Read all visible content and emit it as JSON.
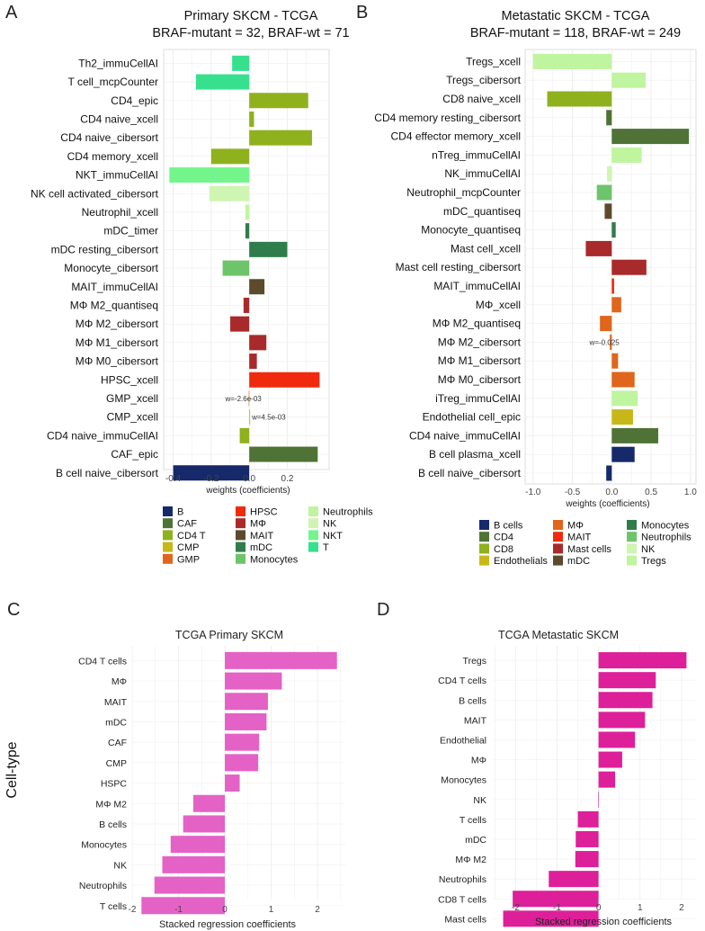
{
  "chart_data": [
    {
      "panel": "A",
      "type": "bar",
      "orientation": "horizontal",
      "title": "Primary SKCM - TCGA",
      "subtitle": "BRAF-mutant = 32, BRAF-wt = 71",
      "xlabel": "weights (coefficients)",
      "xlim": [
        -0.45,
        0.42
      ],
      "xticks": [
        -0.4,
        -0.2,
        0.0,
        0.2
      ],
      "xtick_labels": [
        "-0.4",
        "-0.2",
        "0.0",
        "0.2"
      ],
      "categories": [
        "Th2_immuCellAI",
        "T cell_mcpCounter",
        "CD4_epic",
        "CD4 naive_xcell",
        "CD4 naive_cibersort",
        "CD4 memory_xcell",
        "NKT_immuCellAI",
        "NK cell activated_cibersort",
        "Neutrophil_xcell",
        "mDC_timer",
        "mDC resting_cibersort",
        "Monocyte_cibersort",
        "MAIT_immuCellAI",
        "MΦ M2_quantiseq",
        "MΦ M2_cibersort",
        "MΦ M1_cibersort",
        "MΦ M0_cibersort",
        "HPSC_xcell",
        "GMP_xcell",
        "CMP_xcell",
        "CD4 naive_immuCellAI",
        "CAF_epic",
        "B cell naive_cibersort"
      ],
      "values": [
        -0.09,
        -0.28,
        0.31,
        0.025,
        0.33,
        -0.2,
        -0.42,
        -0.21,
        -0.02,
        -0.02,
        0.2,
        -0.14,
        0.08,
        -0.03,
        -0.1,
        0.09,
        0.04,
        0.37,
        -0.0026,
        0.0045,
        -0.05,
        0.36,
        -0.4
      ],
      "groups": [
        "T",
        "T",
        "CD4 T",
        "CD4 T",
        "CD4 T",
        "CD4 T",
        "NKT",
        "NK",
        "Neutrophils",
        "mDC",
        "mDC",
        "Monocytes",
        "MAIT",
        "MΦ",
        "MΦ",
        "MΦ",
        "MΦ",
        "HPSC",
        "GMP",
        "CMP",
        "CD4 T",
        "CAF",
        "B"
      ],
      "annotations": [
        {
          "category": "GMP_xcell",
          "text": "w=-2.6e-03"
        },
        {
          "category": "CMP_xcell",
          "text": "w=4.5e-03"
        }
      ],
      "legend_title": "",
      "legend": [
        {
          "label": "B",
          "color": "#15296b"
        },
        {
          "label": "CAF",
          "color": "#4f7336"
        },
        {
          "label": "CD4 T",
          "color": "#8fb11e"
        },
        {
          "label": "CMP",
          "color": "#c8b718"
        },
        {
          "label": "GMP",
          "color": "#e0661b"
        },
        {
          "label": "HPSC",
          "color": "#f02a0c"
        },
        {
          "label": "MΦ",
          "color": "#a92a2a"
        },
        {
          "label": "MAIT",
          "color": "#5c4a2c"
        },
        {
          "label": "mDC",
          "color": "#2e7d4a"
        },
        {
          "label": "Monocytes",
          "color": "#6dc46a"
        },
        {
          "label": "Neutrophils",
          "color": "#bff59f"
        },
        {
          "label": "NK",
          "color": "#cef5b1"
        },
        {
          "label": "NKT",
          "color": "#74f58c"
        },
        {
          "label": "T",
          "color": "#36e08e"
        }
      ]
    },
    {
      "panel": "B",
      "type": "bar",
      "orientation": "horizontal",
      "title": "Metastatic SKCM - TCGA",
      "subtitle": "BRAF-mutant = 118, BRAF-wt = 249",
      "xlabel": "weights (coefficients)",
      "xlim": [
        -1.1,
        1.07
      ],
      "xticks": [
        -1.0,
        -0.5,
        0.0,
        0.5,
        1.0
      ],
      "xtick_labels": [
        "-1.0",
        "-0.5",
        "0.0",
        "0.5",
        "1.0"
      ],
      "categories": [
        "Tregs_xcell",
        "Tregs_cibersort",
        "CD8 naive_xcell",
        "CD4 memory resting_cibersort",
        "CD4 effector memory_xcell",
        "nTreg_immuCellAI",
        "NK_immuCellAI",
        "Neutrophil_mcpCounter",
        "mDC_quantiseq",
        "Monocyte_quantiseq",
        "Mast cell_xcell",
        "Mast cell resting_cibersort",
        "MAIT_immuCellAI",
        "MΦ_xcell",
        "MΦ M2_quantiseq",
        "MΦ M2_cibersort",
        "MΦ M1_cibersort",
        "MΦ M0_cibersort",
        "iTreg_immuCellAI",
        "Endothelial cell_epic",
        "CD4 naive_immuCellAI",
        "B cell plasma_xcell",
        "B cell naive_cibersort"
      ],
      "values": [
        -1.0,
        0.43,
        -0.82,
        -0.07,
        0.98,
        0.38,
        -0.06,
        -0.19,
        -0.09,
        0.05,
        -0.33,
        0.44,
        0.03,
        0.12,
        -0.15,
        -0.025,
        0.08,
        0.29,
        0.33,
        0.27,
        0.59,
        0.29,
        -0.07
      ],
      "groups": [
        "Tregs",
        "Tregs",
        "CD8",
        "CD4",
        "CD4",
        "Tregs",
        "NK",
        "Neutrophils",
        "mDC",
        "Monocytes",
        "Mast cells",
        "Mast cells",
        "MAIT",
        "MΦ",
        "MΦ",
        "MΦ",
        "MΦ",
        "MΦ",
        "Tregs",
        "Endothelials",
        "CD4",
        "B cells",
        "B cells"
      ],
      "annotations": [
        {
          "category": "MΦ M2_cibersort",
          "text": "w=-0.025"
        }
      ],
      "legend_title": "",
      "legend": [
        {
          "label": "B cells",
          "color": "#15296b"
        },
        {
          "label": "CD4",
          "color": "#4f7336"
        },
        {
          "label": "CD8",
          "color": "#8fb11e"
        },
        {
          "label": "Endothelials",
          "color": "#c8b718"
        },
        {
          "label": "MΦ",
          "color": "#e0661b"
        },
        {
          "label": "MAIT",
          "color": "#f02a0c"
        },
        {
          "label": "Mast cells",
          "color": "#a92a2a"
        },
        {
          "label": "mDC",
          "color": "#5c4a2c"
        },
        {
          "label": "Monocytes",
          "color": "#2e7d4a"
        },
        {
          "label": "Neutrophils",
          "color": "#6dc46a"
        },
        {
          "label": "NK",
          "color": "#cef5b1"
        },
        {
          "label": "Tregs",
          "color": "#bff59f"
        }
      ]
    },
    {
      "panel": "C",
      "type": "bar",
      "orientation": "horizontal",
      "title": "TCGA Primary SKCM",
      "xlabel": "Stacked regression coefficients",
      "ylabel": "Cell-type",
      "xlim": [
        -2.0,
        2.6
      ],
      "xticks": [
        -2,
        -1,
        0,
        1,
        2
      ],
      "xtick_labels": [
        "-2",
        "-1",
        "0",
        "1",
        "2"
      ],
      "color": "#e462c6",
      "categories": [
        "CD4 T cells",
        "MΦ",
        "MAIT",
        "mDC",
        "CAF",
        "CMP",
        "HSPC",
        "MΦ M2",
        "B cells",
        "Monocytes",
        "NK",
        "Neutrophils",
        "T cells"
      ],
      "values": [
        2.42,
        1.23,
        0.93,
        0.9,
        0.74,
        0.72,
        0.32,
        -0.68,
        -0.9,
        -1.17,
        -1.35,
        -1.52,
        -1.8
      ]
    },
    {
      "panel": "D",
      "type": "bar",
      "orientation": "horizontal",
      "title": "TCGA Metastatic SKCM",
      "xlabel": "Stacked regression coefficients",
      "xlim": [
        -2.55,
        2.35
      ],
      "xticks": [
        -2,
        -1,
        0,
        1,
        2
      ],
      "xtick_labels": [
        "-2",
        "-1",
        "0",
        "1",
        "2"
      ],
      "color": "#de1f9a",
      "categories": [
        "Tregs",
        "CD4 T cells",
        "B cells",
        "MAIT",
        "Endothelial",
        "MΦ",
        "Monocytes",
        "NK",
        "T cells",
        "mDC",
        "MΦ M2",
        "Neutrophils",
        "CD8 T cells",
        "Mast cells"
      ],
      "values": [
        2.12,
        1.38,
        1.3,
        1.12,
        0.88,
        0.57,
        0.4,
        -0.01,
        -0.5,
        -0.55,
        -0.56,
        -1.2,
        -2.07,
        -2.3
      ]
    }
  ],
  "panel_letters": [
    "A",
    "B",
    "C",
    "D"
  ]
}
